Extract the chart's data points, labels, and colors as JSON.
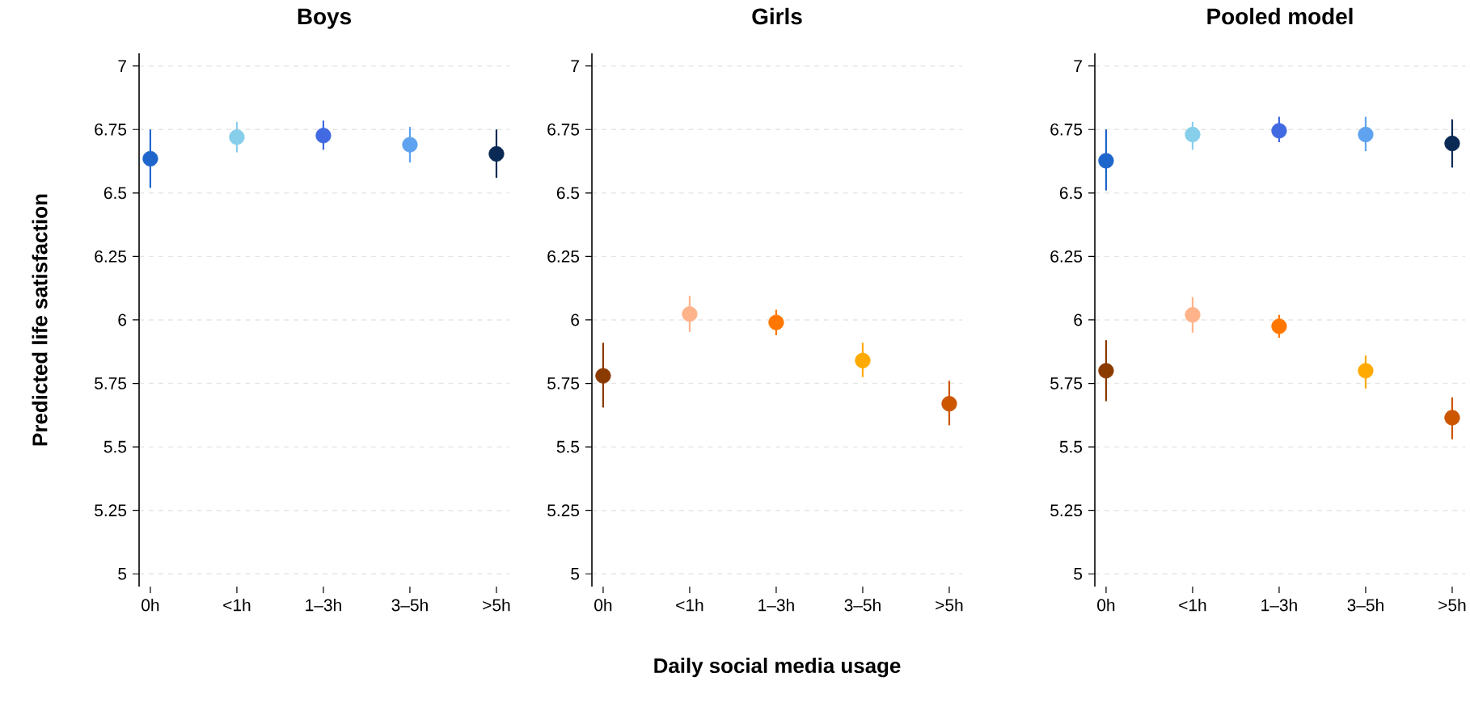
{
  "chart_data": [
    {
      "type": "scatter",
      "title": "Boys",
      "ylabel": "Predicted life satisfaction",
      "categories": [
        "0h",
        "<1h",
        "1–3h",
        "3–5h",
        ">5h"
      ],
      "ylim": [
        4.95,
        7.05
      ],
      "yticks": [
        5,
        5.25,
        5.5,
        5.75,
        6,
        6.25,
        6.5,
        6.75,
        7
      ],
      "grid": "y",
      "marker": "circle",
      "series": [
        {
          "values": [
            6.635,
            6.72,
            6.726,
            6.69,
            6.654
          ],
          "colors": [
            "#1f66cc",
            "#87ceeb",
            "#4169e1",
            "#5ea2f0",
            "#0a2a55"
          ],
          "errors": [
            [
              6.52,
              6.75
            ],
            [
              6.66,
              6.78
            ],
            [
              6.67,
              6.785
            ],
            [
              6.62,
              6.76
            ],
            [
              6.56,
              6.75
            ]
          ]
        }
      ]
    },
    {
      "type": "scatter",
      "title": "Girls",
      "xlabel": "Daily social media usage",
      "categories": [
        "0h",
        "<1h",
        "1–3h",
        "3–5h",
        ">5h"
      ],
      "ylim": [
        4.95,
        7.05
      ],
      "yticks": [
        5,
        5.25,
        5.5,
        5.75,
        6,
        6.25,
        6.5,
        6.75,
        7
      ],
      "grid": "y",
      "marker": "circle",
      "series": [
        {
          "values": [
            5.78,
            6.023,
            5.99,
            5.84,
            5.67
          ],
          "colors": [
            "#8b3a00",
            "#ffb38a",
            "#ff7700",
            "#ffaa00",
            "#cc5500"
          ],
          "errors": [
            [
              5.655,
              5.91
            ],
            [
              5.953,
              6.095
            ],
            [
              5.94,
              6.04
            ],
            [
              5.775,
              5.91
            ],
            [
              5.585,
              5.76
            ]
          ]
        }
      ]
    },
    {
      "type": "scatter",
      "title": "Pooled model",
      "categories": [
        "0h",
        "<1h",
        "1–3h",
        "3–5h",
        ">5h"
      ],
      "ylim": [
        4.95,
        7.05
      ],
      "yticks": [
        5,
        5.25,
        5.5,
        5.75,
        6,
        6.25,
        6.5,
        6.75,
        7
      ],
      "grid": "y",
      "marker": "circle",
      "series": [
        {
          "values": [
            6.627,
            6.73,
            6.745,
            6.73,
            6.695
          ],
          "colors": [
            "#1f66cc",
            "#87ceeb",
            "#4169e1",
            "#5ea2f0",
            "#0a2a55"
          ],
          "errors": [
            [
              6.51,
              6.75
            ],
            [
              6.67,
              6.78
            ],
            [
              6.7,
              6.8
            ],
            [
              6.665,
              6.8
            ],
            [
              6.6,
              6.79
            ]
          ]
        },
        {
          "values": [
            5.8,
            6.02,
            5.975,
            5.8,
            5.615
          ],
          "colors": [
            "#8b3a00",
            "#ffb38a",
            "#ff7700",
            "#ffaa00",
            "#cc5500"
          ],
          "errors": [
            [
              5.68,
              5.92
            ],
            [
              5.95,
              6.09
            ],
            [
              5.93,
              6.02
            ],
            [
              5.73,
              5.86
            ],
            [
              5.53,
              5.695
            ]
          ]
        }
      ]
    }
  ]
}
